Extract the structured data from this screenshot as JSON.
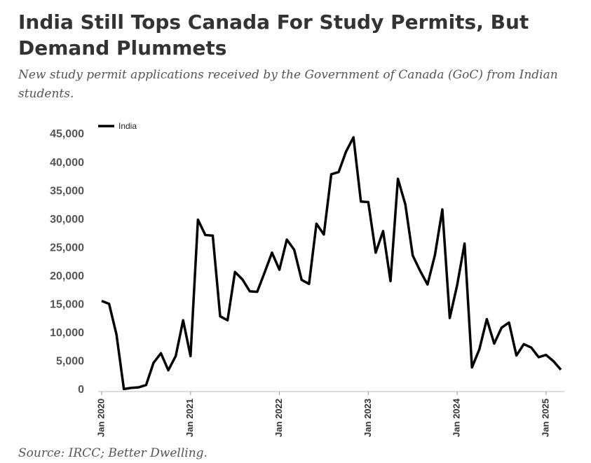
{
  "chart_data": {
    "type": "line",
    "title_lines": [
      "India Still Tops Canada For Study Permits, But",
      "Demand Plummets"
    ],
    "subtitle_lines": [
      "New study permit applications received by the Government of Canada (GoC) from Indian",
      "students."
    ],
    "source": "Source: IRCC; Better Dwelling.",
    "categories": [
      "Jan 2020",
      null,
      null,
      null,
      null,
      null,
      null,
      null,
      null,
      null,
      null,
      null,
      "Jan 2021",
      null,
      null,
      null,
      null,
      null,
      null,
      null,
      null,
      null,
      null,
      null,
      "Jan 2022",
      null,
      null,
      null,
      null,
      null,
      null,
      null,
      null,
      null,
      null,
      null,
      "Jan 2023",
      null,
      null,
      null,
      null,
      null,
      null,
      null,
      null,
      null,
      null,
      null,
      "Jan 2024",
      null,
      null,
      null,
      null,
      null,
      null,
      null,
      null,
      null,
      null,
      null,
      "Jan 2025",
      null,
      null
    ],
    "series": [
      {
        "name": "India",
        "color": "#000000",
        "values": [
          15700,
          15200,
          9800,
          200,
          400,
          500,
          900,
          4800,
          6500,
          3500,
          6000,
          12300,
          6000,
          30000,
          27300,
          27200,
          13000,
          12300,
          20800,
          19500,
          17400,
          17300,
          20700,
          24200,
          21200,
          26500,
          24700,
          19400,
          18700,
          29300,
          27400,
          38000,
          38400,
          42000,
          44500,
          33200,
          33100,
          24200,
          28000,
          19200,
          37200,
          32700,
          23700,
          21000,
          18600,
          23800,
          31800,
          12700,
          18500,
          25800,
          4000,
          7200,
          12500,
          8200,
          11000,
          11900,
          6100,
          8100,
          7500,
          5800,
          6200,
          5100,
          3600
        ]
      }
    ],
    "ylim": [
      0,
      45000
    ],
    "yticks": [
      0,
      {
        "value": 5000,
        "label": "5,000"
      },
      {
        "value": 10000,
        "label": "10,000"
      },
      {
        "value": 15000,
        "label": "15,000"
      },
      {
        "value": 20000,
        "label": "20,000"
      },
      {
        "value": 25000,
        "label": "25,000"
      },
      {
        "value": 30000,
        "label": "30,000"
      },
      {
        "value": 35000,
        "label": "35,000"
      },
      {
        "value": 40000,
        "label": "40,000"
      },
      {
        "value": 45000,
        "label": "45,000"
      }
    ],
    "legend": "top-left"
  }
}
